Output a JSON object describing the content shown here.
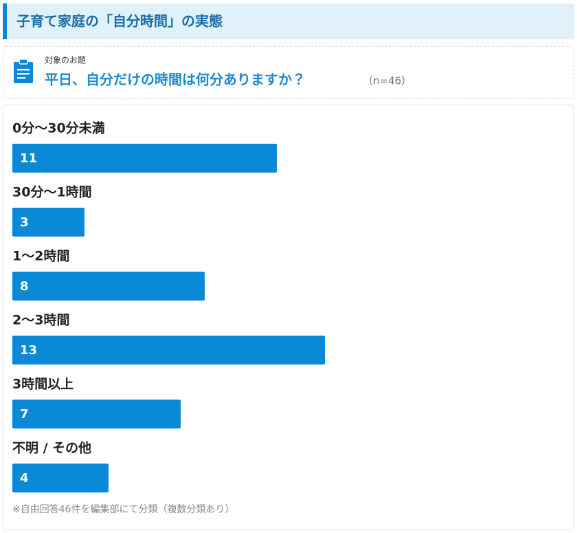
{
  "header": {
    "title": "子育て家庭の「自分時間」の実態"
  },
  "question": {
    "label": "対象のお題",
    "text": "平日、自分だけの時間は何分ありますか？",
    "sample": "（n=46）"
  },
  "chart_data": {
    "type": "bar",
    "orientation": "horizontal",
    "categories": [
      "0分〜30分未満",
      "30分〜1時間",
      "1〜2時間",
      "2〜3時間",
      "3時間以上",
      "不明 / その他"
    ],
    "values": [
      11,
      3,
      8,
      13,
      7,
      4
    ],
    "color": "#0a8ad6"
  },
  "note": "※自由回答46件を編集部にて分類（複数分類あり）"
}
